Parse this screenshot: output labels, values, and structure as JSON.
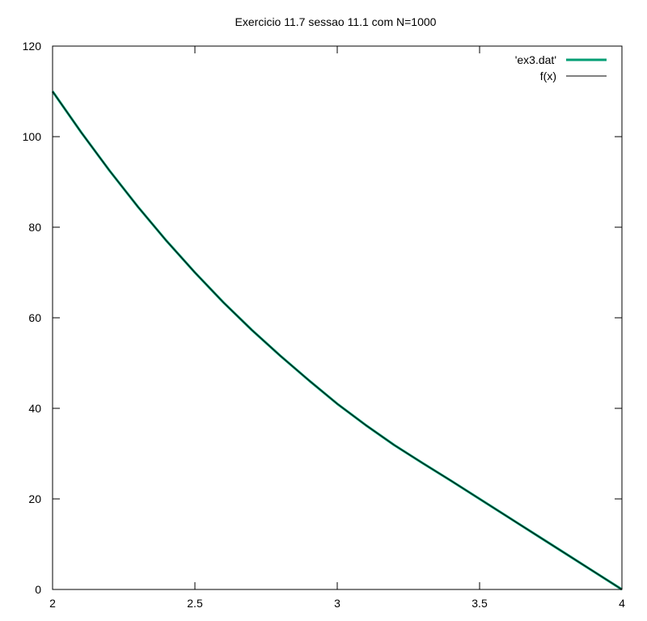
{
  "chart_data": {
    "type": "line",
    "title": "Exercicio 11.7 sessao 11.1 com N=1000",
    "xlim": [
      2,
      4
    ],
    "ylim": [
      0,
      120
    ],
    "x_ticks": [
      2,
      2.5,
      3,
      3.5,
      4
    ],
    "y_ticks": [
      0,
      20,
      40,
      60,
      80,
      100,
      120
    ],
    "x_tick_labels": [
      "2",
      "2.5",
      "3",
      "3.5",
      "4"
    ],
    "y_tick_labels": [
      "0",
      "20",
      "40",
      "60",
      "80",
      "100",
      "120"
    ],
    "grid": false,
    "legend_position": "top-right",
    "series": [
      {
        "name": "'ex3.dat'",
        "color": "#009e73",
        "x": [
          2.0,
          2.1,
          2.2,
          2.3,
          2.4,
          2.5,
          2.6,
          2.7,
          2.8,
          2.9,
          3.0,
          3.1,
          3.2,
          3.3,
          3.4,
          3.5,
          3.6,
          3.7,
          3.8,
          3.9,
          4.0
        ],
        "y": [
          110.0,
          101.0,
          92.5,
          84.5,
          77.0,
          70.0,
          63.4,
          57.3,
          51.6,
          46.2,
          41.0,
          36.3,
          31.9,
          27.9,
          24.0,
          20.0,
          16.0,
          12.0,
          8.0,
          4.0,
          0.0
        ]
      },
      {
        "name": "f(x)",
        "color": "#000000",
        "x": [
          2.0,
          2.1,
          2.2,
          2.3,
          2.4,
          2.5,
          2.6,
          2.7,
          2.8,
          2.9,
          3.0,
          3.1,
          3.2,
          3.3,
          3.4,
          3.5,
          3.6,
          3.7,
          3.8,
          3.9,
          4.0
        ],
        "y": [
          110.0,
          101.0,
          92.5,
          84.5,
          77.0,
          70.0,
          63.4,
          57.3,
          51.6,
          46.2,
          41.0,
          36.3,
          31.9,
          27.9,
          24.0,
          20.0,
          16.0,
          12.0,
          8.0,
          4.0,
          0.0
        ]
      }
    ]
  }
}
